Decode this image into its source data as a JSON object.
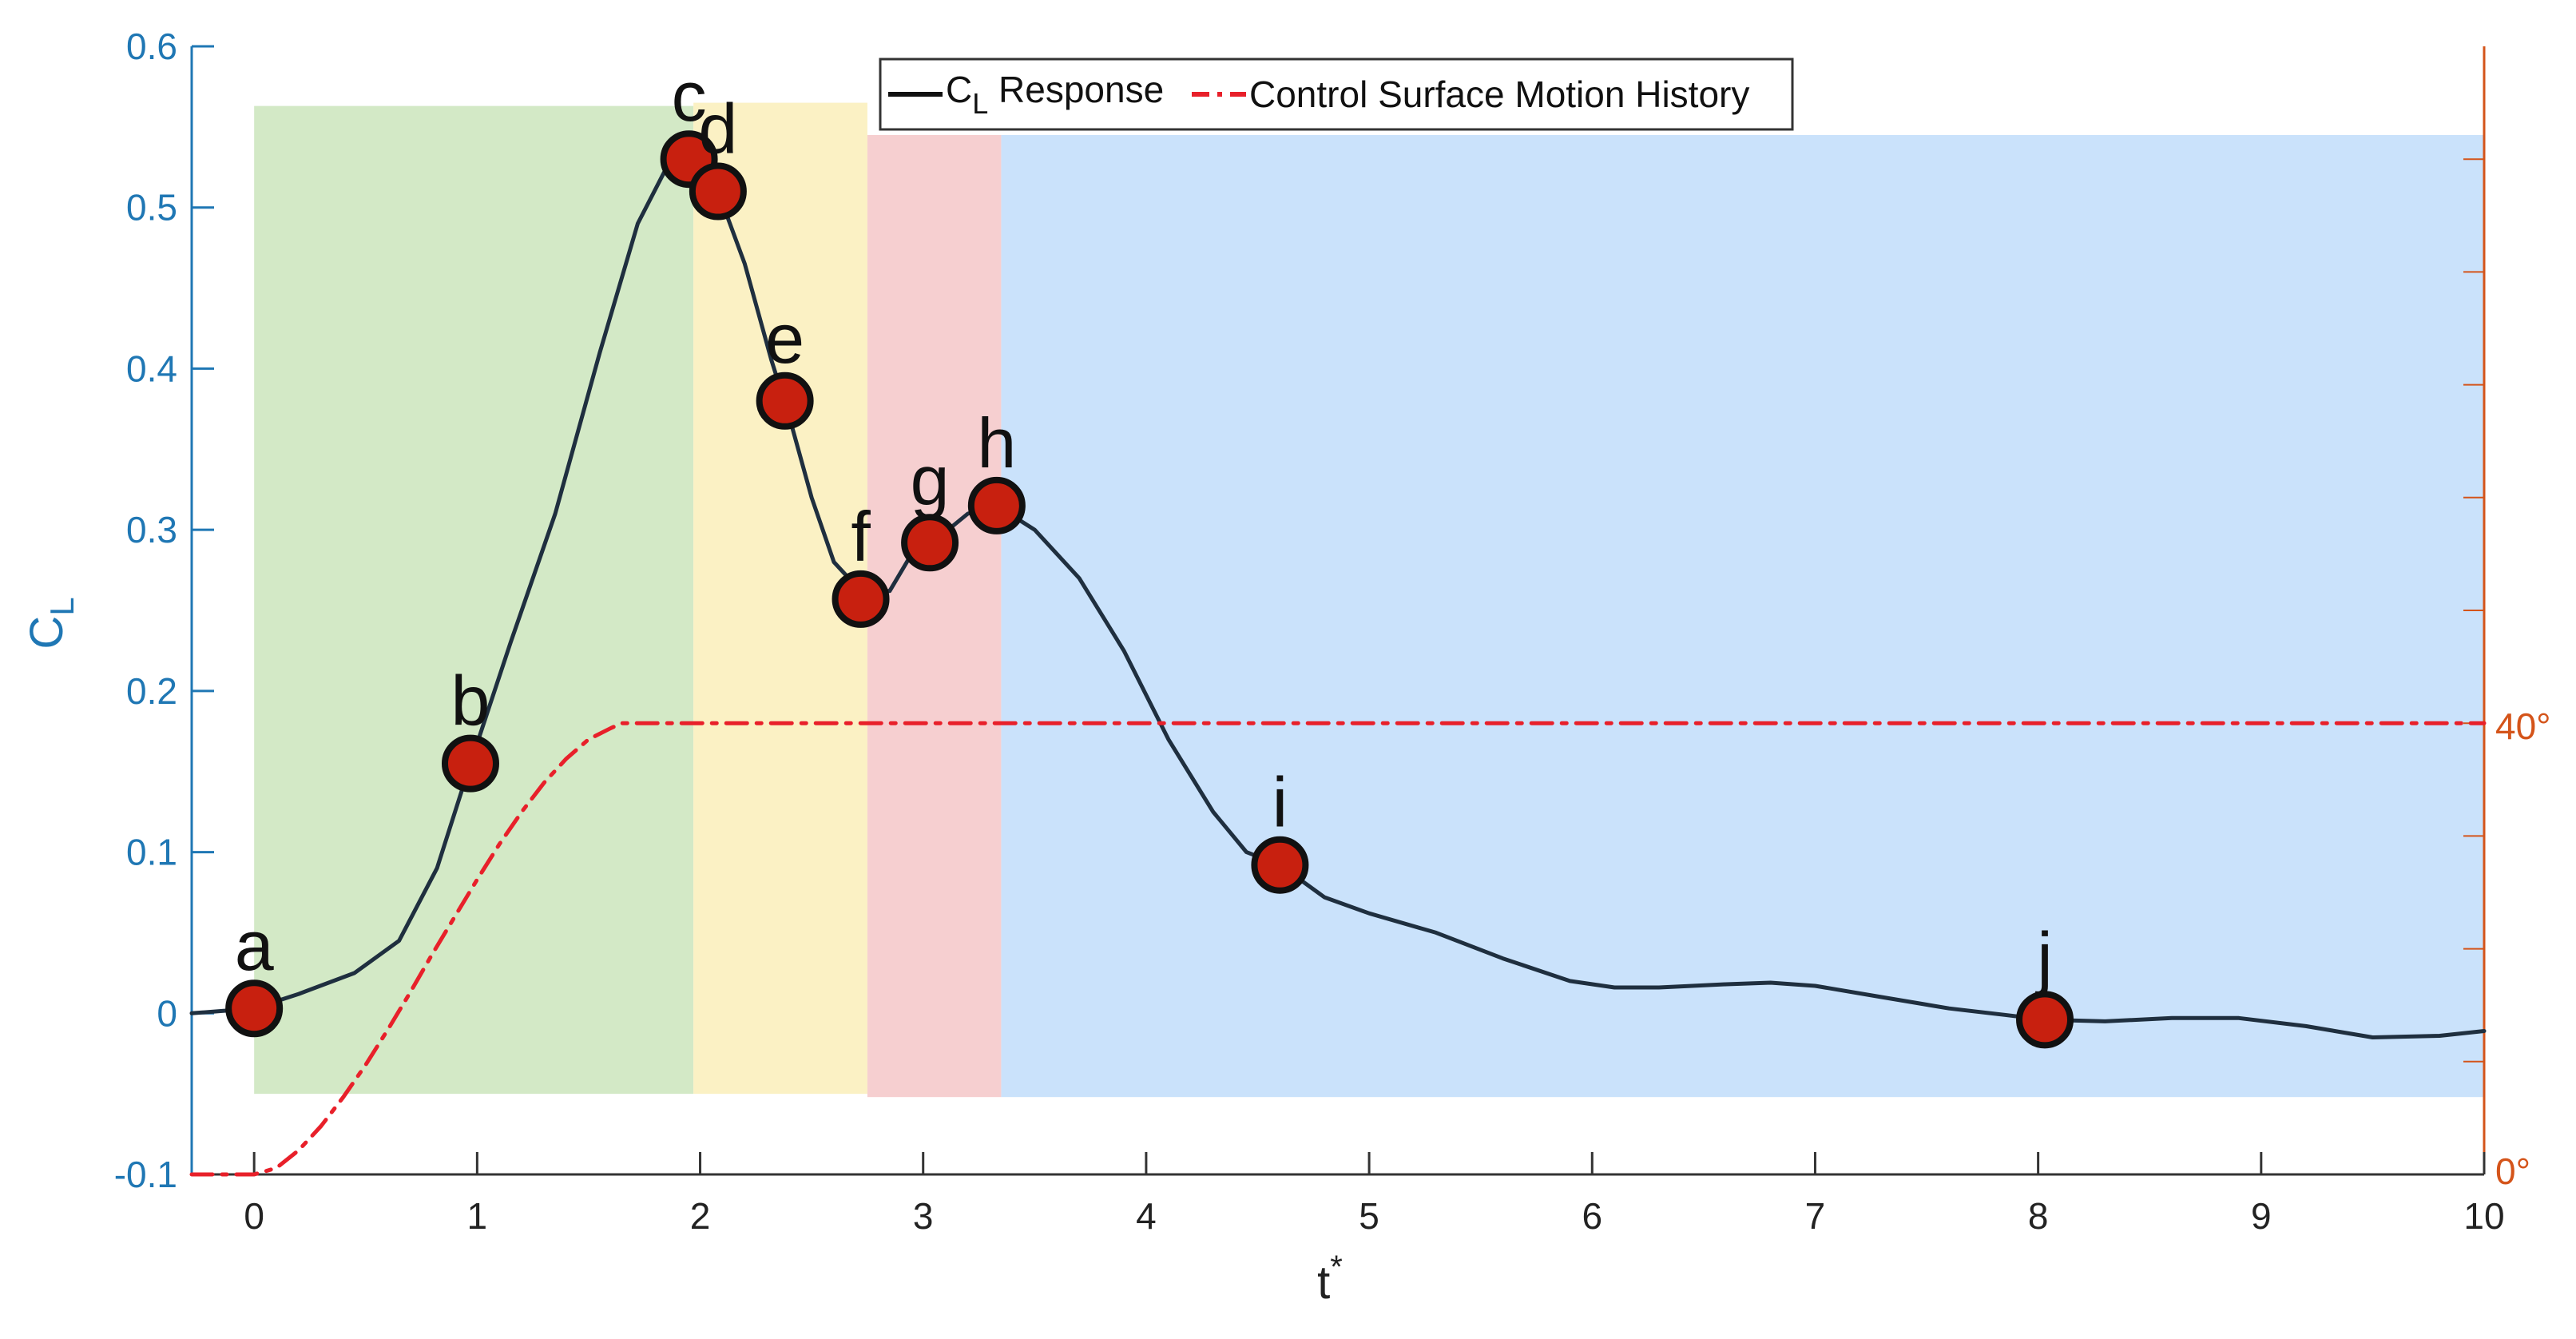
{
  "chart_data": {
    "type": "line",
    "title": "",
    "xlabel": "t",
    "xlabel_superscript": "*",
    "ylabel": "C",
    "ylabel_subscript": "L",
    "xlim": [
      -0.28,
      10
    ],
    "ylim": [
      -0.1,
      0.6
    ],
    "x_ticks": [
      0,
      1,
      2,
      3,
      4,
      5,
      6,
      7,
      8,
      9,
      10
    ],
    "y_ticks": [
      -0.1,
      0,
      0.1,
      0.2,
      0.3,
      0.4,
      0.5,
      0.6
    ],
    "y_tick_labels": [
      "-0.1",
      "0",
      "0.1",
      "0.2",
      "0.3",
      "0.4",
      "0.5",
      "0.6"
    ],
    "x_tick_labels": [
      "0",
      "1",
      "2",
      "3",
      "4",
      "5",
      "6",
      "7",
      "8",
      "9",
      "10"
    ],
    "right_axis": {
      "labels": [
        "0°",
        "40°"
      ],
      "values_deg": [
        0,
        40
      ],
      "mapped_left_values": [
        -0.1,
        0.18
      ]
    },
    "legend": {
      "placement": "top-center",
      "entries": [
        {
          "label": "C",
          "subscript": "L",
          "suffix": " Response",
          "color": "#111111",
          "dash": "solid"
        },
        {
          "label": "Control Surface Motion History",
          "color": "#e8202a",
          "dash": "dashdot"
        }
      ]
    },
    "shaded_regions": [
      {
        "x0": 0,
        "x1": 1.97,
        "y0": -0.05,
        "y1": 0.563,
        "color": "#d3e9c6"
      },
      {
        "x0": 1.97,
        "x1": 2.75,
        "y0": -0.05,
        "y1": 0.565,
        "color": "#fbf1c4"
      },
      {
        "x0": 2.75,
        "x1": 3.35,
        "y0": -0.052,
        "y1": 0.545,
        "color": "#f6cfd0"
      },
      {
        "x0": 3.35,
        "x1": 10,
        "y0": -0.052,
        "y1": 0.545,
        "color": "#cae2fb"
      }
    ],
    "series": [
      {
        "name": "C_L Response",
        "color": "#1f2f3f",
        "x": [
          -0.28,
          0,
          0.2,
          0.45,
          0.65,
          0.82,
          0.97,
          1.15,
          1.35,
          1.55,
          1.72,
          1.85,
          1.95,
          2.02,
          2.08,
          2.2,
          2.32,
          2.4,
          2.5,
          2.6,
          2.72,
          2.85,
          2.97,
          3.05,
          3.2,
          3.33,
          3.5,
          3.7,
          3.9,
          4.1,
          4.3,
          4.45,
          4.6,
          4.8,
          5.0,
          5.3,
          5.6,
          5.9,
          6.1,
          6.3,
          6.6,
          6.8,
          7.0,
          7.3,
          7.6,
          7.85,
          8.03,
          8.3,
          8.6,
          8.9,
          9.2,
          9.5,
          9.8,
          10
        ],
        "y": [
          0,
          0.003,
          0.012,
          0.025,
          0.045,
          0.09,
          0.155,
          0.23,
          0.31,
          0.41,
          0.49,
          0.525,
          0.53,
          0.52,
          0.51,
          0.465,
          0.405,
          0.37,
          0.32,
          0.28,
          0.262,
          0.262,
          0.29,
          0.293,
          0.31,
          0.315,
          0.3,
          0.27,
          0.225,
          0.17,
          0.125,
          0.1,
          0.092,
          0.072,
          0.062,
          0.05,
          0.034,
          0.02,
          0.016,
          0.016,
          0.018,
          0.019,
          0.017,
          0.01,
          0.003,
          -0.001,
          -0.004,
          -0.005,
          -0.003,
          -0.003,
          -0.008,
          -0.015,
          -0.014,
          -0.011
        ]
      },
      {
        "name": "Control Surface Motion History",
        "color": "#e8202a",
        "dash": "dashdot",
        "x": [
          -0.28,
          0.0,
          0.1,
          0.2,
          0.3,
          0.4,
          0.5,
          0.6,
          0.7,
          0.8,
          0.9,
          1.0,
          1.1,
          1.2,
          1.3,
          1.4,
          1.5,
          1.6,
          1.65,
          10
        ],
        "y": [
          -0.1,
          -0.1,
          -0.096,
          -0.085,
          -0.07,
          -0.052,
          -0.032,
          -0.01,
          0.013,
          0.037,
          0.06,
          0.083,
          0.105,
          0.125,
          0.143,
          0.158,
          0.17,
          0.177,
          0.18,
          0.18
        ]
      }
    ],
    "points": [
      {
        "label": "a",
        "x": 0,
        "y": 0.003
      },
      {
        "label": "b",
        "x": 0.97,
        "y": 0.155
      },
      {
        "label": "c",
        "x": 1.95,
        "y": 0.53
      },
      {
        "label": "d",
        "x": 2.08,
        "y": 0.51
      },
      {
        "label": "e",
        "x": 2.38,
        "y": 0.38
      },
      {
        "label": "f",
        "x": 2.72,
        "y": 0.257
      },
      {
        "label": "g",
        "x": 3.03,
        "y": 0.292
      },
      {
        "label": "h",
        "x": 3.33,
        "y": 0.315
      },
      {
        "label": "i",
        "x": 4.6,
        "y": 0.092
      },
      {
        "label": "j",
        "x": 8.03,
        "y": -0.004
      }
    ],
    "colors": {
      "left_axis": "#1f77b4",
      "right_axis": "#d4541a",
      "marker_fill": "#c8200f",
      "marker_edge": "#111111"
    }
  }
}
